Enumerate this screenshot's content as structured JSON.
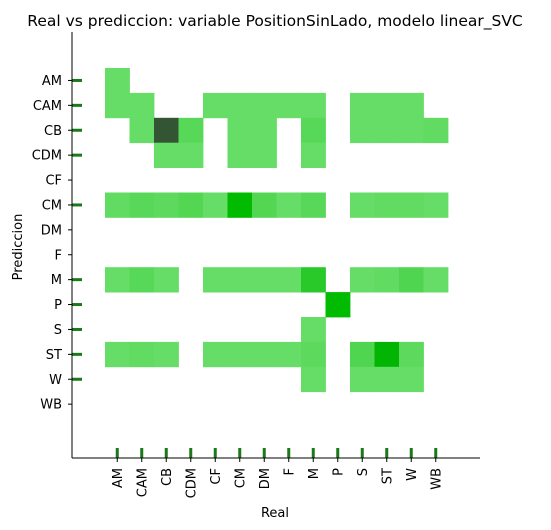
{
  "chart_data": {
    "type": "heatmap",
    "title": "Real vs prediccion: variable PositionSinLado, modelo linear_SVC",
    "xlabel": "Real",
    "ylabel": "Prediccion",
    "x_categories": [
      "AM",
      "CAM",
      "CB",
      "CDM",
      "CF",
      "CM",
      "DM",
      "F",
      "M",
      "P",
      "S",
      "ST",
      "W",
      "WB"
    ],
    "y_categories": [
      "AM",
      "CAM",
      "CB",
      "CDM",
      "CF",
      "CM",
      "DM",
      "F",
      "M",
      "P",
      "S",
      "ST",
      "W",
      "WB"
    ],
    "intensity_scale": [
      1,
      5
    ],
    "cells": [
      {
        "x": "AM",
        "y": "AM",
        "v": 1
      },
      {
        "x": "AM",
        "y": "CAM",
        "v": 1
      },
      {
        "x": "CAM",
        "y": "CAM",
        "v": 1
      },
      {
        "x": "CF",
        "y": "CAM",
        "v": 1
      },
      {
        "x": "CM",
        "y": "CAM",
        "v": 1
      },
      {
        "x": "DM",
        "y": "CAM",
        "v": 1
      },
      {
        "x": "F",
        "y": "CAM",
        "v": 1
      },
      {
        "x": "M",
        "y": "CAM",
        "v": 1
      },
      {
        "x": "S",
        "y": "CAM",
        "v": 1
      },
      {
        "x": "ST",
        "y": "CAM",
        "v": 1
      },
      {
        "x": "W",
        "y": "CAM",
        "v": 1
      },
      {
        "x": "CAM",
        "y": "CB",
        "v": 1
      },
      {
        "x": "CB",
        "y": "CB",
        "v": 5
      },
      {
        "x": "CDM",
        "y": "CB",
        "v": 1.3
      },
      {
        "x": "CM",
        "y": "CB",
        "v": 1
      },
      {
        "x": "DM",
        "y": "CB",
        "v": 1
      },
      {
        "x": "M",
        "y": "CB",
        "v": 1.3
      },
      {
        "x": "S",
        "y": "CB",
        "v": 1
      },
      {
        "x": "ST",
        "y": "CB",
        "v": 1
      },
      {
        "x": "W",
        "y": "CB",
        "v": 1
      },
      {
        "x": "WB",
        "y": "CB",
        "v": 1.1
      },
      {
        "x": "CB",
        "y": "CDM",
        "v": 1
      },
      {
        "x": "CDM",
        "y": "CDM",
        "v": 1
      },
      {
        "x": "CM",
        "y": "CDM",
        "v": 1
      },
      {
        "x": "DM",
        "y": "CDM",
        "v": 1
      },
      {
        "x": "M",
        "y": "CDM",
        "v": 1
      },
      {
        "x": "AM",
        "y": "CM",
        "v": 1.1
      },
      {
        "x": "CAM",
        "y": "CM",
        "v": 1.3
      },
      {
        "x": "CB",
        "y": "CM",
        "v": 1.2
      },
      {
        "x": "CDM",
        "y": "CM",
        "v": 1.4
      },
      {
        "x": "CF",
        "y": "CM",
        "v": 1
      },
      {
        "x": "CM",
        "y": "CM",
        "v": 3.2
      },
      {
        "x": "DM",
        "y": "CM",
        "v": 1.4
      },
      {
        "x": "F",
        "y": "CM",
        "v": 1
      },
      {
        "x": "M",
        "y": "CM",
        "v": 1.3
      },
      {
        "x": "S",
        "y": "CM",
        "v": 1
      },
      {
        "x": "ST",
        "y": "CM",
        "v": 1.1
      },
      {
        "x": "W",
        "y": "CM",
        "v": 1.1
      },
      {
        "x": "WB",
        "y": "CM",
        "v": 1
      },
      {
        "x": "AM",
        "y": "M",
        "v": 1
      },
      {
        "x": "CAM",
        "y": "M",
        "v": 1.3
      },
      {
        "x": "CB",
        "y": "M",
        "v": 1
      },
      {
        "x": "CF",
        "y": "M",
        "v": 1
      },
      {
        "x": "CM",
        "y": "M",
        "v": 1
      },
      {
        "x": "DM",
        "y": "M",
        "v": 1
      },
      {
        "x": "F",
        "y": "M",
        "v": 1
      },
      {
        "x": "M",
        "y": "M",
        "v": 2.3
      },
      {
        "x": "S",
        "y": "M",
        "v": 1
      },
      {
        "x": "ST",
        "y": "M",
        "v": 1.1
      },
      {
        "x": "W",
        "y": "M",
        "v": 1.5
      },
      {
        "x": "WB",
        "y": "M",
        "v": 1
      },
      {
        "x": "P",
        "y": "P",
        "v": 3.2
      },
      {
        "x": "M",
        "y": "S",
        "v": 1
      },
      {
        "x": "AM",
        "y": "ST",
        "v": 1
      },
      {
        "x": "CAM",
        "y": "ST",
        "v": 1.1
      },
      {
        "x": "CB",
        "y": "ST",
        "v": 1
      },
      {
        "x": "CF",
        "y": "ST",
        "v": 1
      },
      {
        "x": "CM",
        "y": "ST",
        "v": 1
      },
      {
        "x": "DM",
        "y": "ST",
        "v": 1
      },
      {
        "x": "F",
        "y": "ST",
        "v": 1
      },
      {
        "x": "M",
        "y": "ST",
        "v": 1.2
      },
      {
        "x": "S",
        "y": "ST",
        "v": 1.5
      },
      {
        "x": "ST",
        "y": "ST",
        "v": 3.3
      },
      {
        "x": "W",
        "y": "ST",
        "v": 1.2
      },
      {
        "x": "M",
        "y": "W",
        "v": 1
      },
      {
        "x": "S",
        "y": "W",
        "v": 1
      },
      {
        "x": "ST",
        "y": "W",
        "v": 1
      },
      {
        "x": "W",
        "y": "W",
        "v": 1
      }
    ],
    "colors": {
      "low": "#66dd66",
      "mid": "#00bb00",
      "high": "#335533",
      "rug": "#1a7a1a",
      "axis": "#000000"
    },
    "grid": false
  }
}
